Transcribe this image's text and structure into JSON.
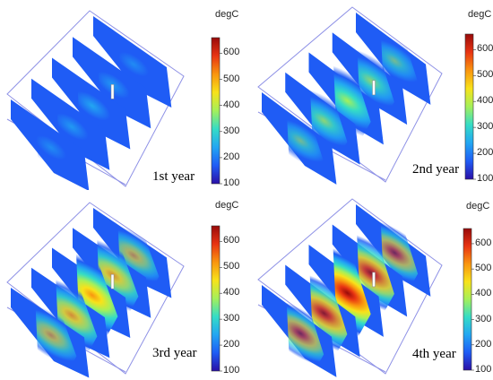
{
  "colorbar": {
    "unit": "degC",
    "ticks": [
      100,
      200,
      300,
      400,
      500,
      600
    ],
    "min": 100,
    "max": 660,
    "colors": [
      "#2a0fa6",
      "#1f5cf5",
      "#22a6f2",
      "#35dcc6",
      "#a5f05a",
      "#f8e21a",
      "#f9950f",
      "#e83412",
      "#980a0a"
    ]
  },
  "panels": [
    {
      "label": "1st year",
      "intensity": 0.25
    },
    {
      "label": "2nd year",
      "intensity": 0.55
    },
    {
      "label": "3rd year",
      "intensity": 0.78
    },
    {
      "label": "4th year",
      "intensity": 0.95
    }
  ]
}
